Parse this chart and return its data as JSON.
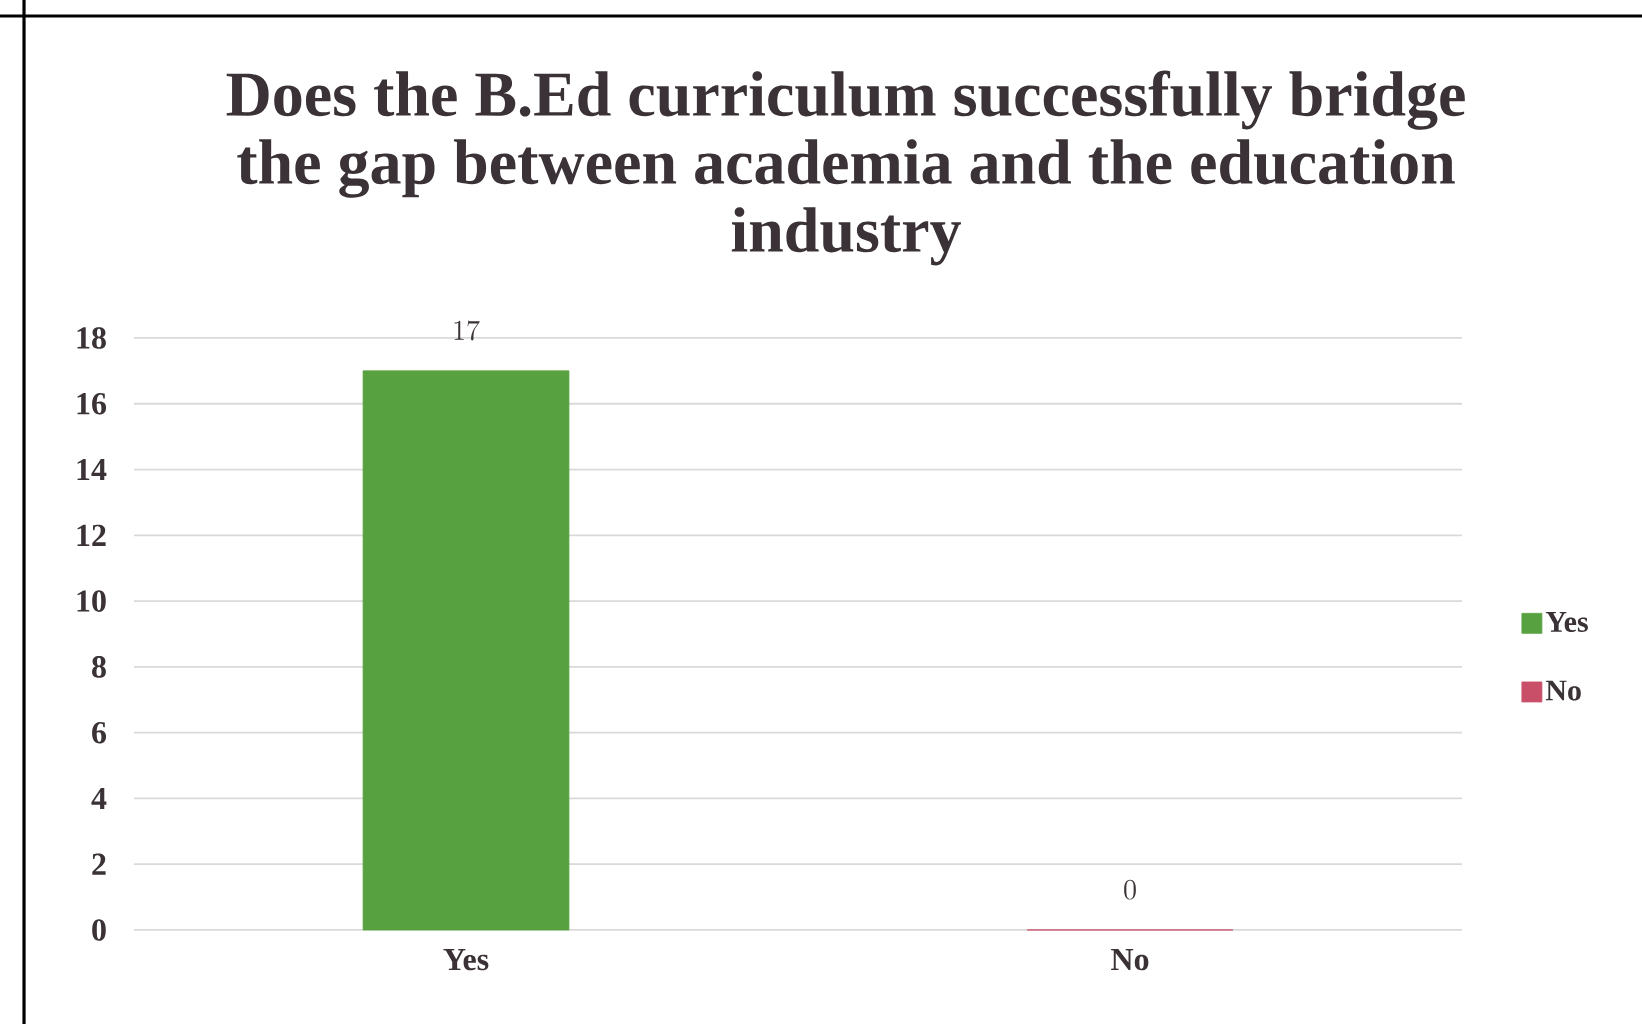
{
  "chart_data": {
    "type": "bar",
    "title": "Does the B.Ed curriculum successfully bridge the gap between academia and the education industry",
    "categories": [
      "Yes",
      "No"
    ],
    "series": [
      {
        "name": "Yes",
        "color": "#58a140",
        "values": [
          17,
          null
        ]
      },
      {
        "name": "No",
        "color": "#c94f68",
        "values": [
          null,
          0
        ]
      }
    ],
    "ylim": [
      0,
      18
    ],
    "yticks": [
      0,
      2,
      4,
      6,
      8,
      10,
      12,
      14,
      16,
      18
    ],
    "grid": "y",
    "legend": "right",
    "data_labels": true
  }
}
